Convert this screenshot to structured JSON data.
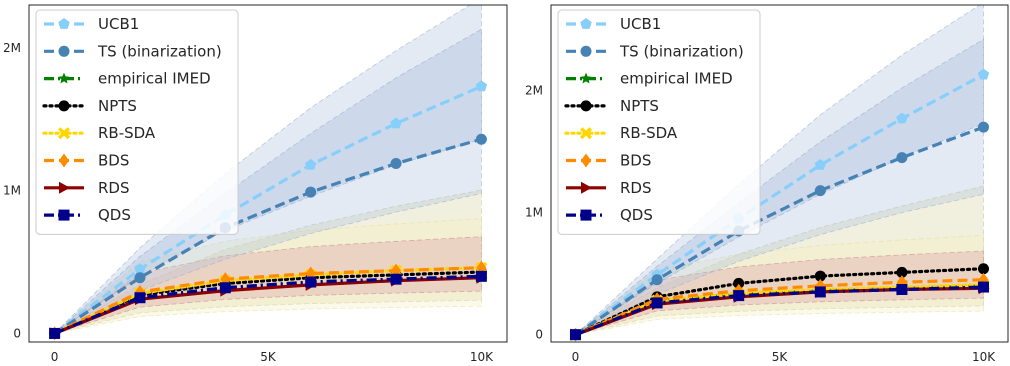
{
  "chart_data": [
    {
      "type": "line",
      "title": "",
      "xlabel": "",
      "ylabel": "",
      "x": [
        0,
        2000,
        4000,
        6000,
        8000,
        10000
      ],
      "xlim": [
        -600,
        10600
      ],
      "ylim": [
        -60000,
        2300000
      ],
      "x_ticks": [
        0,
        5000,
        10000
      ],
      "x_tick_labels": [
        "0",
        "5K",
        "10K"
      ],
      "y_ticks": [
        0,
        1000000,
        2000000
      ],
      "y_tick_labels": [
        "0",
        "1M",
        "2M"
      ],
      "grid": false,
      "legend_position": "top-left",
      "series": [
        {
          "name": "UCB1",
          "color": "#87cefa",
          "line_style": "dashed",
          "marker": "pentagon",
          "values": [
            0,
            450000,
            830000,
            1180000,
            1470000,
            1730000
          ],
          "band_inner": {
            "lower": [
              0,
              400000,
              720000,
              960000,
              1180000,
              1360000
            ],
            "upper": [
              0,
              540000,
              980000,
              1400000,
              1790000,
              2130000
            ]
          },
          "band_outer": {
            "lower": [
              0,
              300000,
              520000,
              700000,
              850000,
              980000
            ],
            "upper": [
              0,
              600000,
              1120000,
              1580000,
              1980000,
              2350000
            ]
          }
        },
        {
          "name": "TS (binarization)",
          "color": "#4682b4",
          "line_style": "dashed",
          "marker": "circle",
          "values": [
            0,
            390000,
            740000,
            990000,
            1190000,
            1360000
          ]
        },
        {
          "name": "empirical IMED",
          "color": "#008000",
          "line_style": "dashdot",
          "marker": "star",
          "values": [
            0,
            250000,
            320000,
            360000,
            380000,
            400000
          ]
        },
        {
          "name": "NPTS",
          "color": "#000000",
          "line_style": "dotted",
          "marker": "circle",
          "values": [
            0,
            270000,
            350000,
            390000,
            410000,
            430000
          ]
        },
        {
          "name": "RB-SDA",
          "color": "#ffd700",
          "line_style": "dotted",
          "marker": "x",
          "values": [
            0,
            280000,
            370000,
            410000,
            440000,
            460000
          ]
        },
        {
          "name": "BDS",
          "color": "#ff8c00",
          "line_style": "dashed",
          "marker": "diamond",
          "values": [
            0,
            290000,
            380000,
            420000,
            440000,
            460000
          ]
        },
        {
          "name": "RDS",
          "color": "#8b0000",
          "line_style": "solid",
          "marker": "triangle-right",
          "values": [
            0,
            240000,
            300000,
            340000,
            370000,
            390000
          ]
        },
        {
          "name": "QDS",
          "color": "#00008b",
          "line_style": "dashdot",
          "marker": "square",
          "values": [
            0,
            250000,
            320000,
            360000,
            380000,
            400000
          ]
        }
      ]
    },
    {
      "type": "line",
      "title": "",
      "xlabel": "",
      "ylabel": "",
      "x": [
        0,
        2000,
        4000,
        6000,
        8000,
        10000
      ],
      "xlim": [
        -600,
        10600
      ],
      "ylim": [
        -60000,
        2700000
      ],
      "x_ticks": [
        0,
        5000,
        10000
      ],
      "x_tick_labels": [
        "0",
        "5K",
        "10K"
      ],
      "y_ticks": [
        0,
        1000000,
        2000000
      ],
      "y_tick_labels": [
        "0",
        "1M",
        "2M"
      ],
      "grid": false,
      "legend_position": "top-left",
      "series": [
        {
          "name": "UCB1",
          "color": "#87cefa",
          "line_style": "dashed",
          "marker": "pentagon",
          "values": [
            0,
            490000,
            950000,
            1390000,
            1770000,
            2130000
          ],
          "band_inner": {
            "lower": [
              0,
              420000,
              800000,
              1150000,
              1450000,
              1730000
            ],
            "upper": [
              0,
              560000,
              1080000,
              1580000,
              2020000,
              2420000
            ]
          },
          "band_outer": {
            "lower": [
              0,
              330000,
              600000,
              820000,
              1000000,
              1150000
            ],
            "upper": [
              0,
              620000,
              1230000,
              1800000,
              2290000,
              2720000
            ]
          }
        },
        {
          "name": "TS (binarization)",
          "color": "#4682b4",
          "line_style": "dashed",
          "marker": "circle",
          "values": [
            0,
            450000,
            850000,
            1180000,
            1450000,
            1700000
          ]
        },
        {
          "name": "empirical IMED",
          "color": "#008000",
          "line_style": "dashdot",
          "marker": "star",
          "values": [
            0,
            280000,
            330000,
            360000,
            380000,
            400000
          ]
        },
        {
          "name": "NPTS",
          "color": "#000000",
          "line_style": "dotted",
          "marker": "circle",
          "values": [
            0,
            310000,
            420000,
            480000,
            510000,
            540000
          ]
        },
        {
          "name": "RB-SDA",
          "color": "#ffd700",
          "line_style": "dotted",
          "marker": "x",
          "values": [
            0,
            280000,
            340000,
            370000,
            390000,
            410000
          ]
        },
        {
          "name": "BDS",
          "color": "#ff8c00",
          "line_style": "dashed",
          "marker": "diamond",
          "values": [
            0,
            290000,
            360000,
            400000,
            430000,
            450000
          ]
        },
        {
          "name": "RDS",
          "color": "#8b0000",
          "line_style": "solid",
          "marker": "triangle-right",
          "values": [
            0,
            250000,
            310000,
            350000,
            370000,
            380000
          ]
        },
        {
          "name": "QDS",
          "color": "#00008b",
          "line_style": "dashdot",
          "marker": "square",
          "values": [
            0,
            260000,
            320000,
            350000,
            370000,
            390000
          ]
        }
      ]
    }
  ]
}
